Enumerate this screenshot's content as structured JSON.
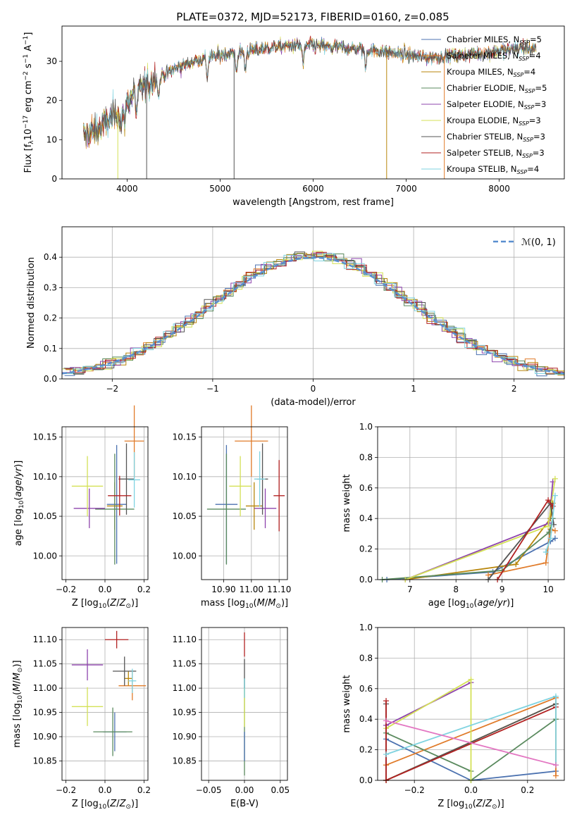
{
  "figure": {
    "title": "PLATE=0372, MJD=52173, FIBERID=0160, z=0.085"
  },
  "models": [
    {
      "name": "Chabrier MILES",
      "nssp": "5",
      "color": "#4c72b0"
    },
    {
      "name": "Salpeter MILES",
      "nssp": "4",
      "color": "#e07b2a"
    },
    {
      "name": "Kroupa MILES",
      "nssp": "4",
      "color": "#b8860b"
    },
    {
      "name": "Chabrier ELODIE",
      "nssp": "5",
      "color": "#5a8a5e"
    },
    {
      "name": "Salpeter ELODIE",
      "nssp": "3",
      "color": "#8e44ad"
    },
    {
      "name": "Kroupa ELODIE",
      "nssp": "3",
      "color": "#d4e157"
    },
    {
      "name": "Chabrier STELIB",
      "nssp": "3",
      "color": "#555555"
    },
    {
      "name": "Salpeter STELIB",
      "nssp": "3",
      "color": "#b22222"
    },
    {
      "name": "Kroupa STELIB",
      "nssp": "4",
      "color": "#7fd3e0"
    }
  ],
  "chart_data": [
    {
      "id": "spectrum",
      "type": "line",
      "xlabel": "wavelength [Angstrom, rest frame]",
      "ylabel": "Flux [f_λ 10^-17 erg cm^-2 s^-1 A^-1]",
      "xlim": [
        3300,
        8700
      ],
      "ylim": [
        0,
        39
      ],
      "xticks": [
        4000,
        5000,
        6000,
        7000,
        8000
      ],
      "yticks": [
        0,
        10,
        20,
        30
      ],
      "grid": false,
      "legend": "top-right",
      "continuum": [
        [
          3530,
          11
        ],
        [
          3650,
          12
        ],
        [
          3800,
          15
        ],
        [
          3900,
          17
        ],
        [
          4050,
          21
        ],
        [
          4200,
          24
        ],
        [
          4350,
          26
        ],
        [
          4500,
          28
        ],
        [
          4700,
          30
        ],
        [
          4900,
          31
        ],
        [
          5100,
          32
        ],
        [
          5400,
          33
        ],
        [
          5700,
          34
        ],
        [
          6000,
          34
        ],
        [
          6300,
          33.5
        ],
        [
          6600,
          33
        ],
        [
          6900,
          32
        ],
        [
          7200,
          31
        ],
        [
          7500,
          31.5
        ],
        [
          7800,
          32
        ],
        [
          8100,
          33
        ],
        [
          8300,
          33.5
        ],
        [
          8400,
          33
        ]
      ],
      "drops": [
        {
          "x": 3900,
          "model": 5
        },
        {
          "x": 4210,
          "model": 6
        },
        {
          "x": 5150,
          "model": 6
        },
        {
          "x": 6790,
          "model": 2
        },
        {
          "x": 7410,
          "model": 1
        }
      ]
    },
    {
      "id": "residuals",
      "type": "step",
      "xlabel": "(data-model)/error",
      "ylabel": "Normed distribution",
      "xlim": [
        -2.5,
        2.5
      ],
      "ylim": [
        0,
        0.5
      ],
      "xticks": [
        -2,
        -1,
        0,
        1,
        2
      ],
      "yticks": [
        0.0,
        0.1,
        0.2,
        0.3,
        0.4
      ],
      "bin_width": 0.1,
      "reference_curve": {
        "name": "N(0,1)",
        "mu": 0,
        "sigma": 1,
        "color": "#5a8fd0"
      },
      "grid": true,
      "legend": "top-right"
    },
    {
      "id": "age-vs-Z",
      "type": "errorbar",
      "xlabel": "Z [log10(Z/Z_sun)]",
      "ylabel": "age [log10(age/yr)]",
      "xlim": [
        -0.22,
        0.22
      ],
      "ylim": [
        9.97,
        10.163
      ],
      "xticks": [
        -0.2,
        0.0,
        0.2
      ],
      "yticks": [
        10.0,
        10.05,
        10.1,
        10.15
      ],
      "grid": true,
      "points": [
        {
          "model": 0,
          "x": 0.06,
          "y": 10.065,
          "xerr": 0.05,
          "yerr": 0.075
        },
        {
          "model": 1,
          "x": 0.15,
          "y": 10.145,
          "xerr": 0.05,
          "yerr": 0.045
        },
        {
          "model": 2,
          "x": 0.05,
          "y": 10.063,
          "xerr": 0.04,
          "yerr": 0.03
        },
        {
          "model": 3,
          "x": 0.05,
          "y": 10.059,
          "xerr": 0.1,
          "yerr": 0.07
        },
        {
          "model": 4,
          "x": -0.08,
          "y": 10.06,
          "xerr": 0.08,
          "yerr": 0.025
        },
        {
          "model": 5,
          "x": -0.09,
          "y": 10.088,
          "xerr": 0.08,
          "yerr": 0.038
        },
        {
          "model": 6,
          "x": 0.11,
          "y": 10.097,
          "xerr": 0.04,
          "yerr": 0.045
        },
        {
          "model": 7,
          "x": 0.075,
          "y": 10.076,
          "xerr": 0.06,
          "yerr": 0.025
        },
        {
          "model": 8,
          "x": 0.15,
          "y": 10.096,
          "xerr": 0.03,
          "yerr": 0.035
        }
      ]
    },
    {
      "id": "age-vs-mass",
      "type": "errorbar",
      "xlabel": "mass [log10(M/M_sun)]",
      "ylabel": "",
      "xlim": [
        10.82,
        11.13
      ],
      "ylim": [
        9.97,
        10.163
      ],
      "xticks": [
        10.9,
        11.0,
        11.1
      ],
      "yticks": [
        10.0,
        10.05,
        10.1,
        10.15
      ],
      "grid": true,
      "points": [
        {
          "model": 0,
          "x": 10.91,
          "y": 10.065,
          "xerr": 0.04,
          "yerr": 0.075
        },
        {
          "model": 1,
          "x": 11.0,
          "y": 10.145,
          "xerr": 0.06,
          "yerr": 0.045
        },
        {
          "model": 2,
          "x": 11.01,
          "y": 10.063,
          "xerr": 0.03,
          "yerr": 0.03
        },
        {
          "model": 3,
          "x": 10.91,
          "y": 10.059,
          "xerr": 0.07,
          "yerr": 0.07
        },
        {
          "model": 4,
          "x": 11.05,
          "y": 10.06,
          "xerr": 0.04,
          "yerr": 0.025
        },
        {
          "model": 5,
          "x": 10.96,
          "y": 10.088,
          "xerr": 0.04,
          "yerr": 0.038
        },
        {
          "model": 6,
          "x": 11.04,
          "y": 10.097,
          "xerr": 0.02,
          "yerr": 0.045
        },
        {
          "model": 7,
          "x": 11.1,
          "y": 10.076,
          "xerr": 0.02,
          "yerr": 0.045
        },
        {
          "model": 8,
          "x": 11.03,
          "y": 10.097,
          "xerr": 0.02,
          "yerr": 0.035
        }
      ]
    },
    {
      "id": "weight-vs-age",
      "type": "line",
      "xlabel": "age [log10(age/yr)]",
      "ylabel": "mass weight",
      "xlim": [
        6.3,
        10.35
      ],
      "ylim": [
        0,
        1
      ],
      "xticks": [
        7,
        8,
        9,
        10
      ],
      "yticks": [
        0.0,
        0.2,
        0.4,
        0.6,
        0.8,
        1.0
      ],
      "grid": true,
      "series": [
        {
          "model": 0,
          "points": [
            [
              6.5,
              0.0
            ],
            [
              8.8,
              0.05
            ],
            [
              10.05,
              0.25
            ],
            [
              10.15,
              0.27
            ]
          ]
        },
        {
          "model": 1,
          "points": [
            [
              8.7,
              0.03
            ],
            [
              9.95,
              0.11
            ],
            [
              10.05,
              0.33
            ],
            [
              10.15,
              0.32
            ]
          ]
        },
        {
          "model": 2,
          "points": [
            [
              6.9,
              0.0
            ],
            [
              9.3,
              0.1
            ],
            [
              10.05,
              0.4
            ],
            [
              10.1,
              0.5
            ]
          ]
        },
        {
          "model": 3,
          "points": [
            [
              6.4,
              0.0
            ],
            [
              9.0,
              0.06
            ],
            [
              10.02,
              0.31
            ],
            [
              10.1,
              0.4
            ]
          ]
        },
        {
          "model": 4,
          "points": [
            [
              6.9,
              0.0
            ],
            [
              10.02,
              0.37
            ],
            [
              10.1,
              0.64
            ]
          ]
        },
        {
          "model": 5,
          "points": [
            [
              6.9,
              0.0
            ],
            [
              10.0,
              0.35
            ],
            [
              10.15,
              0.66
            ]
          ]
        },
        {
          "model": 6,
          "points": [
            [
              8.7,
              0.0
            ],
            [
              10.05,
              0.5
            ],
            [
              10.12,
              0.36
            ]
          ]
        },
        {
          "model": 7,
          "points": [
            [
              8.9,
              0.0
            ],
            [
              10.0,
              0.52
            ],
            [
              10.1,
              0.48
            ]
          ]
        },
        {
          "model": 8,
          "points": [
            [
              9.95,
              0.18
            ],
            [
              10.05,
              0.27
            ],
            [
              10.15,
              0.55
            ]
          ]
        }
      ]
    },
    {
      "id": "mass-vs-Z",
      "type": "errorbar",
      "xlabel": "Z [log10(Z/Z_sun)]",
      "ylabel": "mass [log10(M/M_sun)]",
      "xlim": [
        -0.22,
        0.22
      ],
      "ylim": [
        10.81,
        11.125
      ],
      "xticks": [
        -0.2,
        0.0,
        0.2
      ],
      "yticks": [
        10.85,
        10.9,
        10.95,
        11.0,
        11.05,
        11.1
      ],
      "grid": true,
      "points": [
        {
          "model": 0,
          "x": 0.05,
          "y": 10.91,
          "xerr": 0.06,
          "yerr": 0.04
        },
        {
          "model": 1,
          "x": 0.14,
          "y": 11.005,
          "xerr": 0.07,
          "yerr": 0.03
        },
        {
          "model": 2,
          "x": 0.12,
          "y": 11.02,
          "xerr": 0.02,
          "yerr": 0.015
        },
        {
          "model": 3,
          "x": 0.04,
          "y": 10.91,
          "xerr": 0.1,
          "yerr": 0.05
        },
        {
          "model": 4,
          "x": -0.09,
          "y": 11.048,
          "xerr": 0.08,
          "yerr": 0.032
        },
        {
          "model": 5,
          "x": -0.09,
          "y": 10.962,
          "xerr": 0.08,
          "yerr": 0.04
        },
        {
          "model": 6,
          "x": 0.1,
          "y": 11.035,
          "xerr": 0.06,
          "yerr": 0.03
        },
        {
          "model": 7,
          "x": 0.06,
          "y": 11.1,
          "xerr": 0.06,
          "yerr": 0.018
        },
        {
          "model": 8,
          "x": 0.14,
          "y": 11.015,
          "xerr": 0.02,
          "yerr": 0.025
        }
      ]
    },
    {
      "id": "mass-vs-EBV",
      "type": "errorbar",
      "xlabel": "E(B-V)",
      "ylabel": "",
      "xlim": [
        -0.06,
        0.06
      ],
      "ylim": [
        10.81,
        11.125
      ],
      "xticks": [
        -0.05,
        0.0,
        0.05
      ],
      "yticks": [
        10.85,
        10.9,
        10.95,
        11.0,
        11.05,
        11.1
      ],
      "grid": true,
      "points": [
        {
          "model": 3,
          "x": 0.0,
          "y": 10.92,
          "xerr": 0.0,
          "yerr": 0.1
        },
        {
          "model": 5,
          "x": 0.0,
          "y": 10.96,
          "xerr": 0.0,
          "yerr": 0.04
        },
        {
          "model": 7,
          "x": 0.0,
          "y": 11.09,
          "xerr": 0.0,
          "yerr": 0.025
        },
        {
          "model": 6,
          "x": 0.0,
          "y": 11.03,
          "xerr": 0.0,
          "yerr": 0.03
        },
        {
          "model": 8,
          "x": 0.0,
          "y": 11.0,
          "xerr": 0.0,
          "yerr": 0.02
        },
        {
          "model": 0,
          "x": 0.0,
          "y": 10.88,
          "xerr": 0.0,
          "yerr": 0.03
        }
      ]
    },
    {
      "id": "weight-vs-Z",
      "type": "line",
      "xlabel": "Z [log10(Z/Z_sun)]",
      "ylabel": "mass weight",
      "xlim": [
        -0.33,
        0.33
      ],
      "ylim": [
        0,
        1
      ],
      "xticks": [
        -0.2,
        0.0,
        0.2
      ],
      "yticks": [
        0.0,
        0.2,
        0.4,
        0.6,
        0.8,
        1.0
      ],
      "grid": true,
      "series": [
        {
          "model": 0,
          "points": [
            [
              -0.3,
              0.27
            ],
            [
              0.0,
              0.0
            ],
            [
              0.3,
              0.06
            ]
          ]
        },
        {
          "model": 1,
          "points": [
            [
              -0.3,
              0.1
            ],
            [
              0.3,
              0.54
            ],
            [
              0.3,
              0.03
            ]
          ]
        },
        {
          "model": 2,
          "points": [
            [
              -0.3,
              0.0
            ],
            [
              0.3,
              0.5
            ]
          ]
        },
        {
          "model": 3,
          "points": [
            [
              -0.3,
              0.31
            ],
            [
              0.0,
              0.06
            ],
            [
              0.0,
              0.0
            ],
            [
              0.3,
              0.4
            ]
          ]
        },
        {
          "model": 4,
          "points": [
            [
              -0.3,
              0.36
            ],
            [
              0.0,
              0.64
            ]
          ]
        },
        {
          "model": 5,
          "points": [
            [
              -0.3,
              0.34
            ],
            [
              0.0,
              0.66
            ],
            [
              0.0,
              0.0
            ]
          ]
        },
        {
          "model": 6,
          "points": [
            [
              -0.3,
              0.5
            ],
            [
              -0.3,
              0.0
            ],
            [
              0.3,
              0.5
            ]
          ]
        },
        {
          "model": 7,
          "points": [
            [
              -0.3,
              0.52
            ],
            [
              -0.3,
              0.0
            ],
            [
              0.3,
              0.48
            ]
          ]
        },
        {
          "model": 8,
          "points": [
            [
              -0.3,
              0.17
            ],
            [
              0.3,
              0.55
            ],
            [
              0.3,
              0.1
            ]
          ]
        },
        {
          "model": 9,
          "points": [
            [
              -0.3,
              0.39
            ],
            [
              0.3,
              0.1
            ]
          ]
        }
      ],
      "extra_colors": [
        "#e377c2"
      ]
    }
  ]
}
